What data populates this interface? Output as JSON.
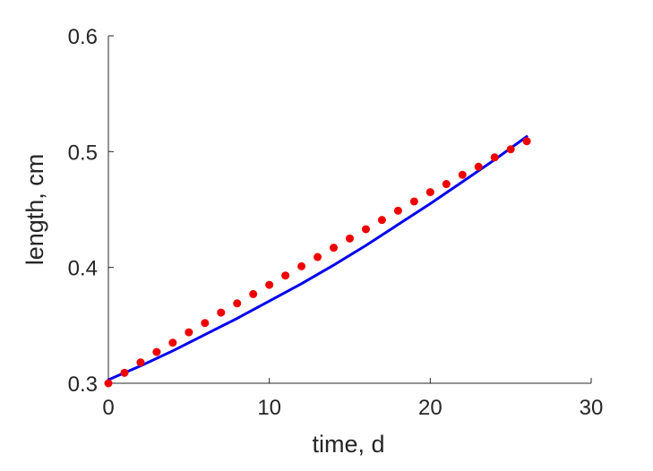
{
  "chart_data": {
    "type": "line",
    "title": "",
    "xlabel": "time, d",
    "ylabel": "length, cm",
    "xlim": [
      0,
      30
    ],
    "ylim": [
      0.3,
      0.6
    ],
    "xticks": [
      0,
      10,
      20,
      30
    ],
    "xtick_labels": [
      "0",
      "10",
      "20",
      "30"
    ],
    "yticks": [
      0.3,
      0.4,
      0.5,
      0.6
    ],
    "ytick_labels": [
      "0.3",
      "0.4",
      "0.5",
      "0.6"
    ],
    "grid": false,
    "series": [
      {
        "style": "line",
        "color": "#0000ee",
        "x": [
          0,
          2,
          4,
          6,
          8,
          10,
          12,
          14,
          16,
          18,
          20,
          22,
          24,
          26
        ],
        "y": [
          0.303,
          0.315,
          0.328,
          0.342,
          0.356,
          0.371,
          0.386,
          0.402,
          0.419,
          0.437,
          0.455,
          0.474,
          0.493,
          0.513
        ]
      },
      {
        "style": "dots",
        "color": "#ee0000",
        "x": [
          0,
          1,
          2,
          3,
          4,
          5,
          6,
          7,
          8,
          9,
          10,
          11,
          12,
          13,
          14,
          15,
          16,
          17,
          18,
          19,
          20,
          21,
          22,
          23,
          24,
          25,
          26
        ],
        "y": [
          0.3,
          0.309,
          0.318,
          0.327,
          0.335,
          0.344,
          0.352,
          0.361,
          0.369,
          0.377,
          0.385,
          0.393,
          0.401,
          0.409,
          0.417,
          0.425,
          0.433,
          0.441,
          0.449,
          0.457,
          0.465,
          0.472,
          0.48,
          0.487,
          0.495,
          0.502,
          0.509
        ]
      }
    ]
  }
}
